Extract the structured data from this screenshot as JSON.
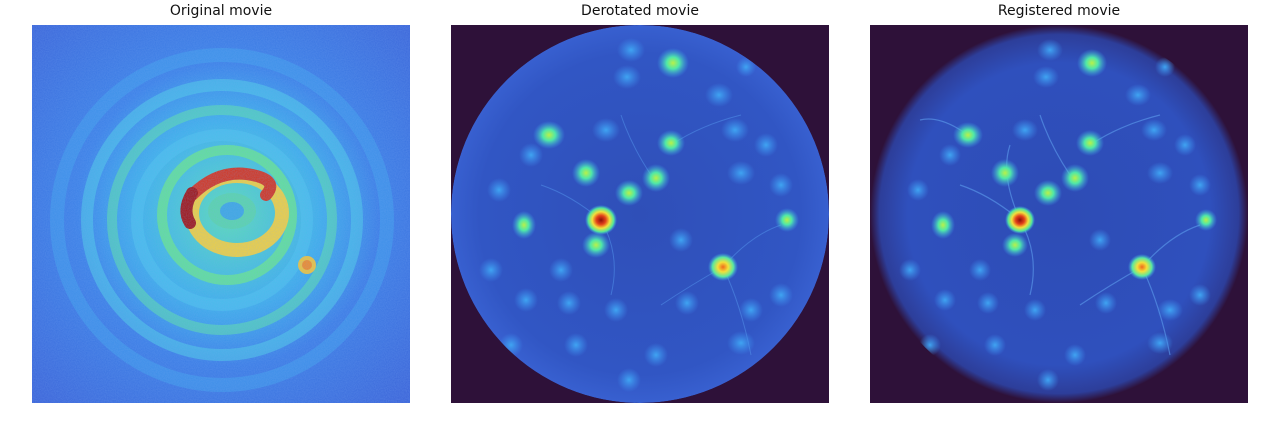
{
  "figure": {
    "panels": [
      {
        "title": "Original movie"
      },
      {
        "title": "Derotated movie"
      },
      {
        "title": "Registered movie"
      }
    ],
    "colormap": [
      "#30123b",
      "#2f5ed5",
      "#29bbeb",
      "#61f06a",
      "#f6e03a",
      "#f26b1b",
      "#9c0d0d"
    ],
    "background_color": "#2e1139"
  }
}
